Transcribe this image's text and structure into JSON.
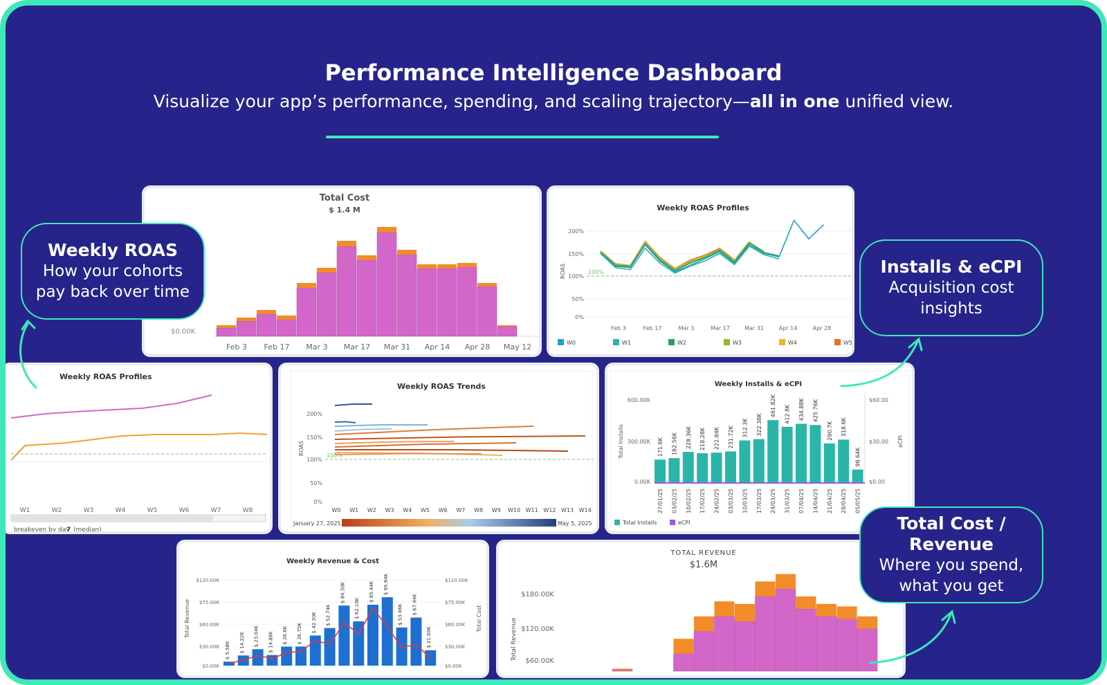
{
  "header": {
    "title": "Performance Intelligence Dashboard",
    "subtitle_pre": "Visualize your app’s performance, spending, and scaling trajectory—",
    "subtitle_bold": "all in one",
    "subtitle_post": " unified view."
  },
  "callouts": [
    {
      "title": "Weekly ROAS",
      "desc": "How your cohorts pay back over time"
    },
    {
      "title": "Installs & eCPI",
      "desc": "Acquisition cost insights"
    },
    {
      "title": "Total Cost / Revenue",
      "desc": "Where you spend, what you get"
    }
  ],
  "colors": {
    "background": "#26248a",
    "accent": "#3ee8b8",
    "magenta": "#d267c9",
    "orange": "#f28c28",
    "teal": "#2bb5a8",
    "blue": "#1e6fd1",
    "red": "#e03a3e"
  },
  "charts": [
    {
      "id": "total_cost",
      "type": "bar",
      "title": "Total Cost",
      "subtitle": "$ 1.4 M",
      "ytick": "$0.00K",
      "categories": [
        "",
        "Feb 3",
        "",
        "Feb 17",
        "",
        "Mar 3",
        "",
        "Mar 17",
        "",
        "Mar 31",
        "",
        "Apr 14",
        "",
        "Apr 28",
        "",
        "May 12"
      ],
      "series": [
        {
          "values": [
            12,
            22,
            32,
            24,
            70,
            92,
            130,
            110,
            150,
            118,
            98,
            98,
            100,
            72,
            14
          ]
        },
        {
          "values": [
            4,
            5,
            6,
            6,
            7,
            7,
            8,
            7,
            8,
            7,
            6,
            6,
            6,
            5,
            2
          ]
        }
      ],
      "xlabels": [
        "Feb 3",
        "Feb 17",
        "Mar 3",
        "Mar 17",
        "Mar 31",
        "Apr 14",
        "Apr 28",
        "May 12"
      ]
    },
    {
      "id": "roas_profiles_top",
      "type": "line",
      "title": "Weekly ROAS Profiles",
      "ylabel": "ROAS",
      "yticks": [
        "200%",
        "150%",
        "100%",
        "50%",
        "0%"
      ],
      "ref_label": "100%",
      "xlabels": [
        "Feb 3",
        "Feb 17",
        "Mar 3",
        "Mar 17",
        "Mar 31",
        "Apr 14",
        "Apr 28"
      ],
      "legend": [
        "W0",
        "W1",
        "W2",
        "W3",
        "W4",
        "W5"
      ],
      "series": [
        {
          "name": "W0",
          "color": "#1f9fd0",
          "values": [
            150,
            118,
            115,
            168,
            130,
            105,
            120,
            135,
            152,
            125,
            168,
            148,
            140,
            225,
            182,
            215
          ]
        },
        {
          "name": "W1",
          "color": "#2bb5a8",
          "values": [
            148,
            115,
            110,
            160,
            125,
            102,
            118,
            130,
            148,
            122,
            165,
            145,
            135,
            null,
            null,
            null
          ]
        },
        {
          "name": "W2",
          "color": "#2e9f5a",
          "values": [
            150,
            120,
            117,
            170,
            132,
            108,
            125,
            138,
            155,
            128,
            172,
            150,
            142,
            null,
            null,
            null
          ]
        },
        {
          "name": "W3",
          "color": "#8dbb2a",
          "values": [
            152,
            122,
            118,
            172,
            135,
            110,
            128,
            140,
            157,
            130,
            174,
            152,
            null,
            null,
            null,
            null
          ]
        },
        {
          "name": "W4",
          "color": "#e8b82a",
          "values": [
            153,
            123,
            119,
            174,
            136,
            112,
            130,
            142,
            158,
            132,
            176,
            null,
            null,
            null,
            null,
            null
          ]
        },
        {
          "name": "W5",
          "color": "#f06a2a",
          "values": [
            154,
            124,
            120,
            176,
            138,
            113,
            132,
            144,
            160,
            133,
            null,
            null,
            null,
            null,
            null,
            null
          ]
        }
      ]
    },
    {
      "id": "roas_profiles_left",
      "type": "line",
      "title": "Weekly ROAS Profiles",
      "xlabels": [
        "W1",
        "W2",
        "W3",
        "W4",
        "W5",
        "W6",
        "W7",
        "W8"
      ],
      "footer": "breakeven by day",
      "footer_value": "7",
      "footer_suffix": "(median)"
    },
    {
      "id": "roas_trends",
      "type": "line",
      "title": "Weekly ROAS Trends",
      "ylabel": "ROAS",
      "yticks": [
        "200%",
        "150%",
        "100%",
        "50%",
        "0%"
      ],
      "ref_label": "100%",
      "xlabels": [
        "W0",
        "W1",
        "W2",
        "W3",
        "W4",
        "W5",
        "W6",
        "W7",
        "W8",
        "W9",
        "W10",
        "W11",
        "W12",
        "W13",
        "W14"
      ],
      "start_label": "January 27, 2025",
      "end_label": "May 5, 2025"
    },
    {
      "id": "installs_ecpi",
      "type": "bar",
      "title": "Weekly Installs & eCPI",
      "ylabel": "Total Installs",
      "y2label": "eCPI",
      "yticks": [
        "600.00K",
        "300.00K",
        "0.00K"
      ],
      "y2ticks": [
        "$60.00",
        "$30.00",
        "$0.00"
      ],
      "categories": [
        "27/01/25",
        "03/02/25",
        "10/02/25",
        "17/02/25",
        "24/02/25",
        "03/03/25",
        "10/03/25",
        "17/03/25",
        "24/03/25",
        "31/03/25",
        "07/04/25",
        "14/04/25",
        "21/04/25",
        "28/04/25",
        "05/05/25"
      ],
      "values": [
        171.6,
        182.56,
        228.36,
        218.28,
        222.84,
        231.72,
        312.3,
        322.38,
        461.82,
        412.8,
        434.88,
        425.76,
        290.7,
        318.6,
        98.64
      ],
      "value_labels": [
        "171.6K",
        "182.56K",
        "228.36K",
        "218.28K",
        "222.84K",
        "231.72K",
        "312.3K",
        "322.38K",
        "461.82K",
        "412.8K",
        "434.88K",
        "425.76K",
        "290.7K",
        "318.6K",
        "98.64K"
      ],
      "legend": [
        "Total Installs",
        "eCPI"
      ]
    },
    {
      "id": "revenue_cost",
      "type": "bar",
      "title": "Weekly Revenue & Cost",
      "ylabel": "Total Revenue",
      "y2label": "Total Cost",
      "yticks": [
        "$120.00K",
        "$75.00K",
        "$60.00K",
        "$30.00K",
        "$0.00K"
      ],
      "values": [
        5.58,
        14.22,
        23.04,
        14.88,
        26.6,
        26.75,
        42.3,
        52.74,
        84.3,
        62.1,
        85.44,
        95.94,
        53.46,
        67.44,
        21.6
      ],
      "value_labels": [
        "$ 5.58K",
        "$ 14.22K",
        "$ 23.04K",
        "$ 14.88K",
        "$ 26.6K",
        "$ 26.75K",
        "$ 42.30K",
        "$ 52.74K",
        "$ 84.30K",
        "$ 62.10K",
        "$ 85.44K",
        "$ 95.94K",
        "$ 53.46K",
        "$ 67.44K",
        "$ 21.60K"
      ],
      "cost_values": [
        3,
        8,
        14,
        10,
        18,
        20,
        35,
        30,
        60,
        45,
        80,
        55,
        25,
        30,
        10
      ]
    },
    {
      "id": "total_revenue",
      "type": "bar",
      "title": "TOTAL REVENUE",
      "subtitle": "$1.6M",
      "ylabel": "Total Revenue",
      "yticks": [
        "$180.00K",
        "$120.00K",
        "$60.00K"
      ],
      "series": [
        {
          "values": [
            2,
            null,
            null,
            35,
            80,
            110,
            100,
            150,
            165,
            125,
            110,
            105,
            85
          ]
        },
        {
          "values": [
            3,
            null,
            null,
            30,
            30,
            30,
            35,
            30,
            30,
            25,
            25,
            25,
            25
          ]
        }
      ]
    }
  ]
}
